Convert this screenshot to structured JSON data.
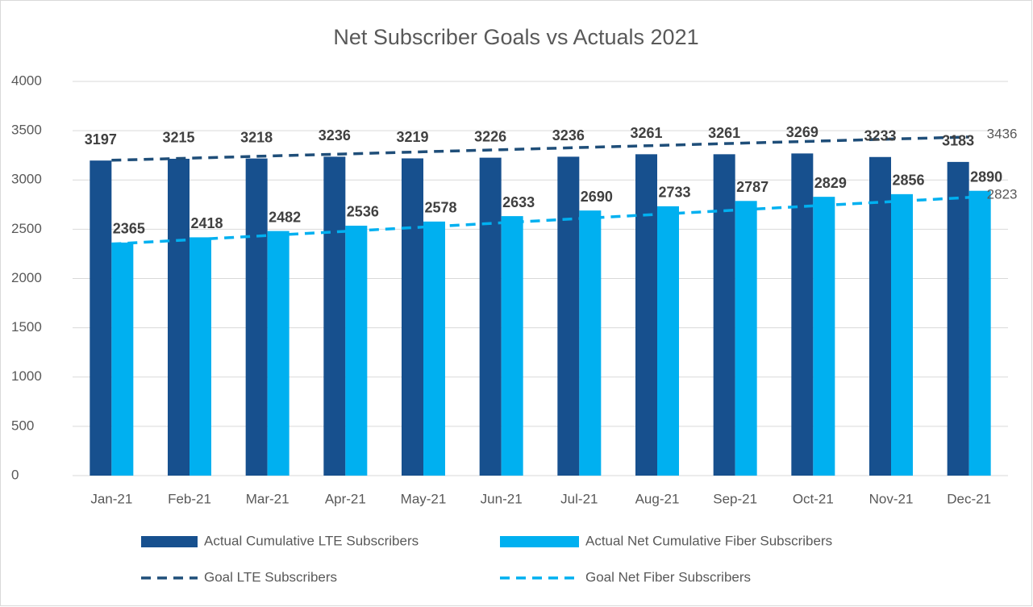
{
  "chart_data": {
    "type": "bar",
    "title": "Net Subscriber Goals vs Actuals 2021",
    "categories": [
      "Jan-21",
      "Feb-21",
      "Mar-21",
      "Apr-21",
      "May-21",
      "Jun-21",
      "Jul-21",
      "Aug-21",
      "Sep-21",
      "Oct-21",
      "Nov-21",
      "Dec-21"
    ],
    "series": [
      {
        "name": "Actual Cumulative LTE Subscribers",
        "type": "bar",
        "color": "#17508e",
        "values": [
          3197,
          3215,
          3218,
          3236,
          3219,
          3226,
          3236,
          3261,
          3261,
          3269,
          3233,
          3183
        ]
      },
      {
        "name": "Actual Net Cumulative Fiber Subscribers",
        "type": "bar",
        "color": "#00b0f0",
        "values": [
          2365,
          2418,
          2482,
          2536,
          2578,
          2633,
          2690,
          2733,
          2787,
          2829,
          2856,
          2890
        ]
      },
      {
        "name": "Goal LTE Subscribers",
        "type": "line",
        "color": "#1f4e79",
        "values": [
          3200,
          3221,
          3243,
          3264,
          3286,
          3307,
          3329,
          3350,
          3372,
          3393,
          3415,
          3436
        ]
      },
      {
        "name": "Goal Net Fiber Subscribers",
        "type": "line",
        "color": "#00b0f0",
        "values": [
          2350,
          2393,
          2436,
          2479,
          2522,
          2565,
          2608,
          2651,
          2694,
          2737,
          2780,
          2823
        ]
      }
    ],
    "ylim": [
      0,
      4000
    ],
    "yticks": [
      0,
      500,
      1000,
      1500,
      2000,
      2500,
      3000,
      3500,
      4000
    ],
    "grid": true
  }
}
